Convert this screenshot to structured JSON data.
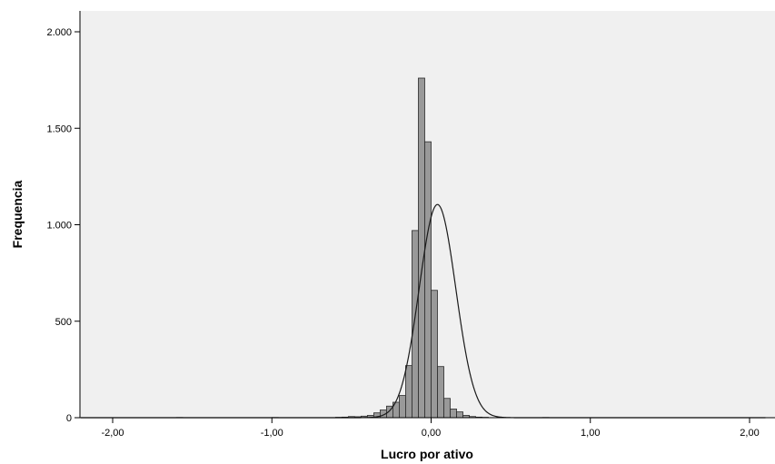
{
  "chart_data": {
    "type": "bar",
    "xlabel": "Lucro por ativo",
    "ylabel": "Frequencia",
    "xlim": [
      -2.2,
      2.1
    ],
    "ylim": [
      0,
      2000
    ],
    "x_ticks": [
      {
        "value": -2,
        "label": "-2,00"
      },
      {
        "value": -1,
        "label": "-1,00"
      },
      {
        "value": 0,
        "label": "0,00"
      },
      {
        "value": 1,
        "label": "1,00"
      },
      {
        "value": 2,
        "label": "2,00"
      }
    ],
    "y_ticks": [
      {
        "value": 0,
        "label": "0"
      },
      {
        "value": 500,
        "label": "500"
      },
      {
        "value": 1000,
        "label": "1.000"
      },
      {
        "value": 1500,
        "label": "1.500"
      },
      {
        "value": 2000,
        "label": "2.000"
      }
    ],
    "bin_width": 0.04,
    "bins": [
      {
        "start": -1.6,
        "count": 1
      },
      {
        "start": -1.0,
        "count": 1
      },
      {
        "start": -0.6,
        "count": 2
      },
      {
        "start": -0.56,
        "count": 3
      },
      {
        "start": -0.52,
        "count": 6
      },
      {
        "start": -0.48,
        "count": 5
      },
      {
        "start": -0.44,
        "count": 8
      },
      {
        "start": -0.4,
        "count": 12
      },
      {
        "start": -0.36,
        "count": 25
      },
      {
        "start": -0.32,
        "count": 40
      },
      {
        "start": -0.28,
        "count": 60
      },
      {
        "start": -0.24,
        "count": 80
      },
      {
        "start": -0.2,
        "count": 115
      },
      {
        "start": -0.16,
        "count": 270
      },
      {
        "start": -0.12,
        "count": 970
      },
      {
        "start": -0.08,
        "count": 1760
      },
      {
        "start": -0.04,
        "count": 1430
      },
      {
        "start": 0.0,
        "count": 660
      },
      {
        "start": 0.04,
        "count": 265
      },
      {
        "start": 0.08,
        "count": 100
      },
      {
        "start": 0.12,
        "count": 45
      },
      {
        "start": 0.16,
        "count": 30
      },
      {
        "start": 0.2,
        "count": 12
      },
      {
        "start": 0.24,
        "count": 6
      },
      {
        "start": 0.28,
        "count": 3
      },
      {
        "start": 0.32,
        "count": 2
      },
      {
        "start": 0.7,
        "count": 1
      }
    ],
    "normal_curve": {
      "mean": 0.04,
      "sd": 0.115,
      "peak": 1105
    },
    "plot_background": "#f0f0f0",
    "bar_color": "#999999",
    "bar_edge_color": "#2a2a2a",
    "curve_color": "#1a1a1a"
  }
}
